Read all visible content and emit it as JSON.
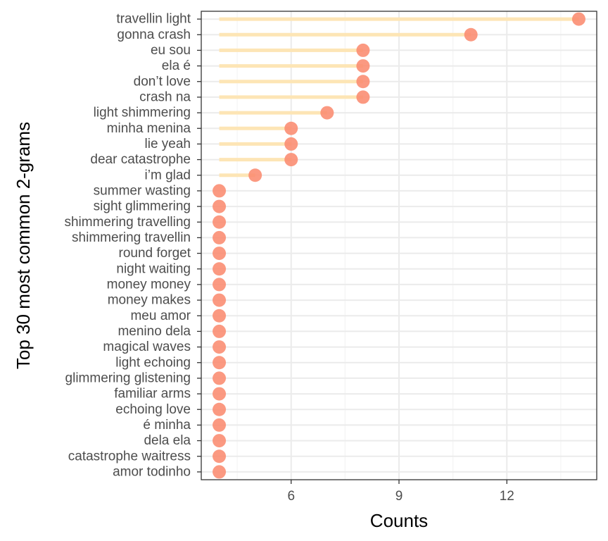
{
  "chart_data": {
    "type": "lollipop",
    "xlabel": "Counts",
    "ylabel": "Top 30 most common 2-grams",
    "xlim": [
      3.5,
      14.5
    ],
    "x_ticks": [
      6,
      9,
      12
    ],
    "x_tick_labels": [
      "6",
      "9",
      "12"
    ],
    "stem_base": 4,
    "grid": true,
    "legend": "none",
    "categories": [
      "travellin light",
      "gonna crash",
      "eu sou",
      "ela é",
      "don’t love",
      "crash na",
      "light shimmering",
      "minha menina",
      "lie yeah",
      "dear catastrophe",
      "i’m glad",
      "summer wasting",
      "sight glimmering",
      "shimmering travelling",
      "shimmering travellin",
      "round forget",
      "night waiting",
      "money money",
      "money makes",
      "meu amor",
      "menino dela",
      "magical waves",
      "light echoing",
      "glimmering glistening",
      "familiar arms",
      "echoing love",
      "é minha",
      "dela ela",
      "catastrophe waitress",
      "amor todinho"
    ],
    "values": [
      14,
      11,
      8,
      8,
      8,
      8,
      7,
      6,
      6,
      6,
      5,
      4,
      4,
      4,
      4,
      4,
      4,
      4,
      4,
      4,
      4,
      4,
      4,
      4,
      4,
      4,
      4,
      4,
      4,
      4
    ],
    "colors": {
      "stem": "#fde5b5",
      "point": "#fa8b70",
      "panel_border": "#333333",
      "grid_major": "#ebebeb",
      "grid_minor": "#f4f4f4",
      "tick_text": "#4d4d4d",
      "title_text": "#000000"
    }
  }
}
